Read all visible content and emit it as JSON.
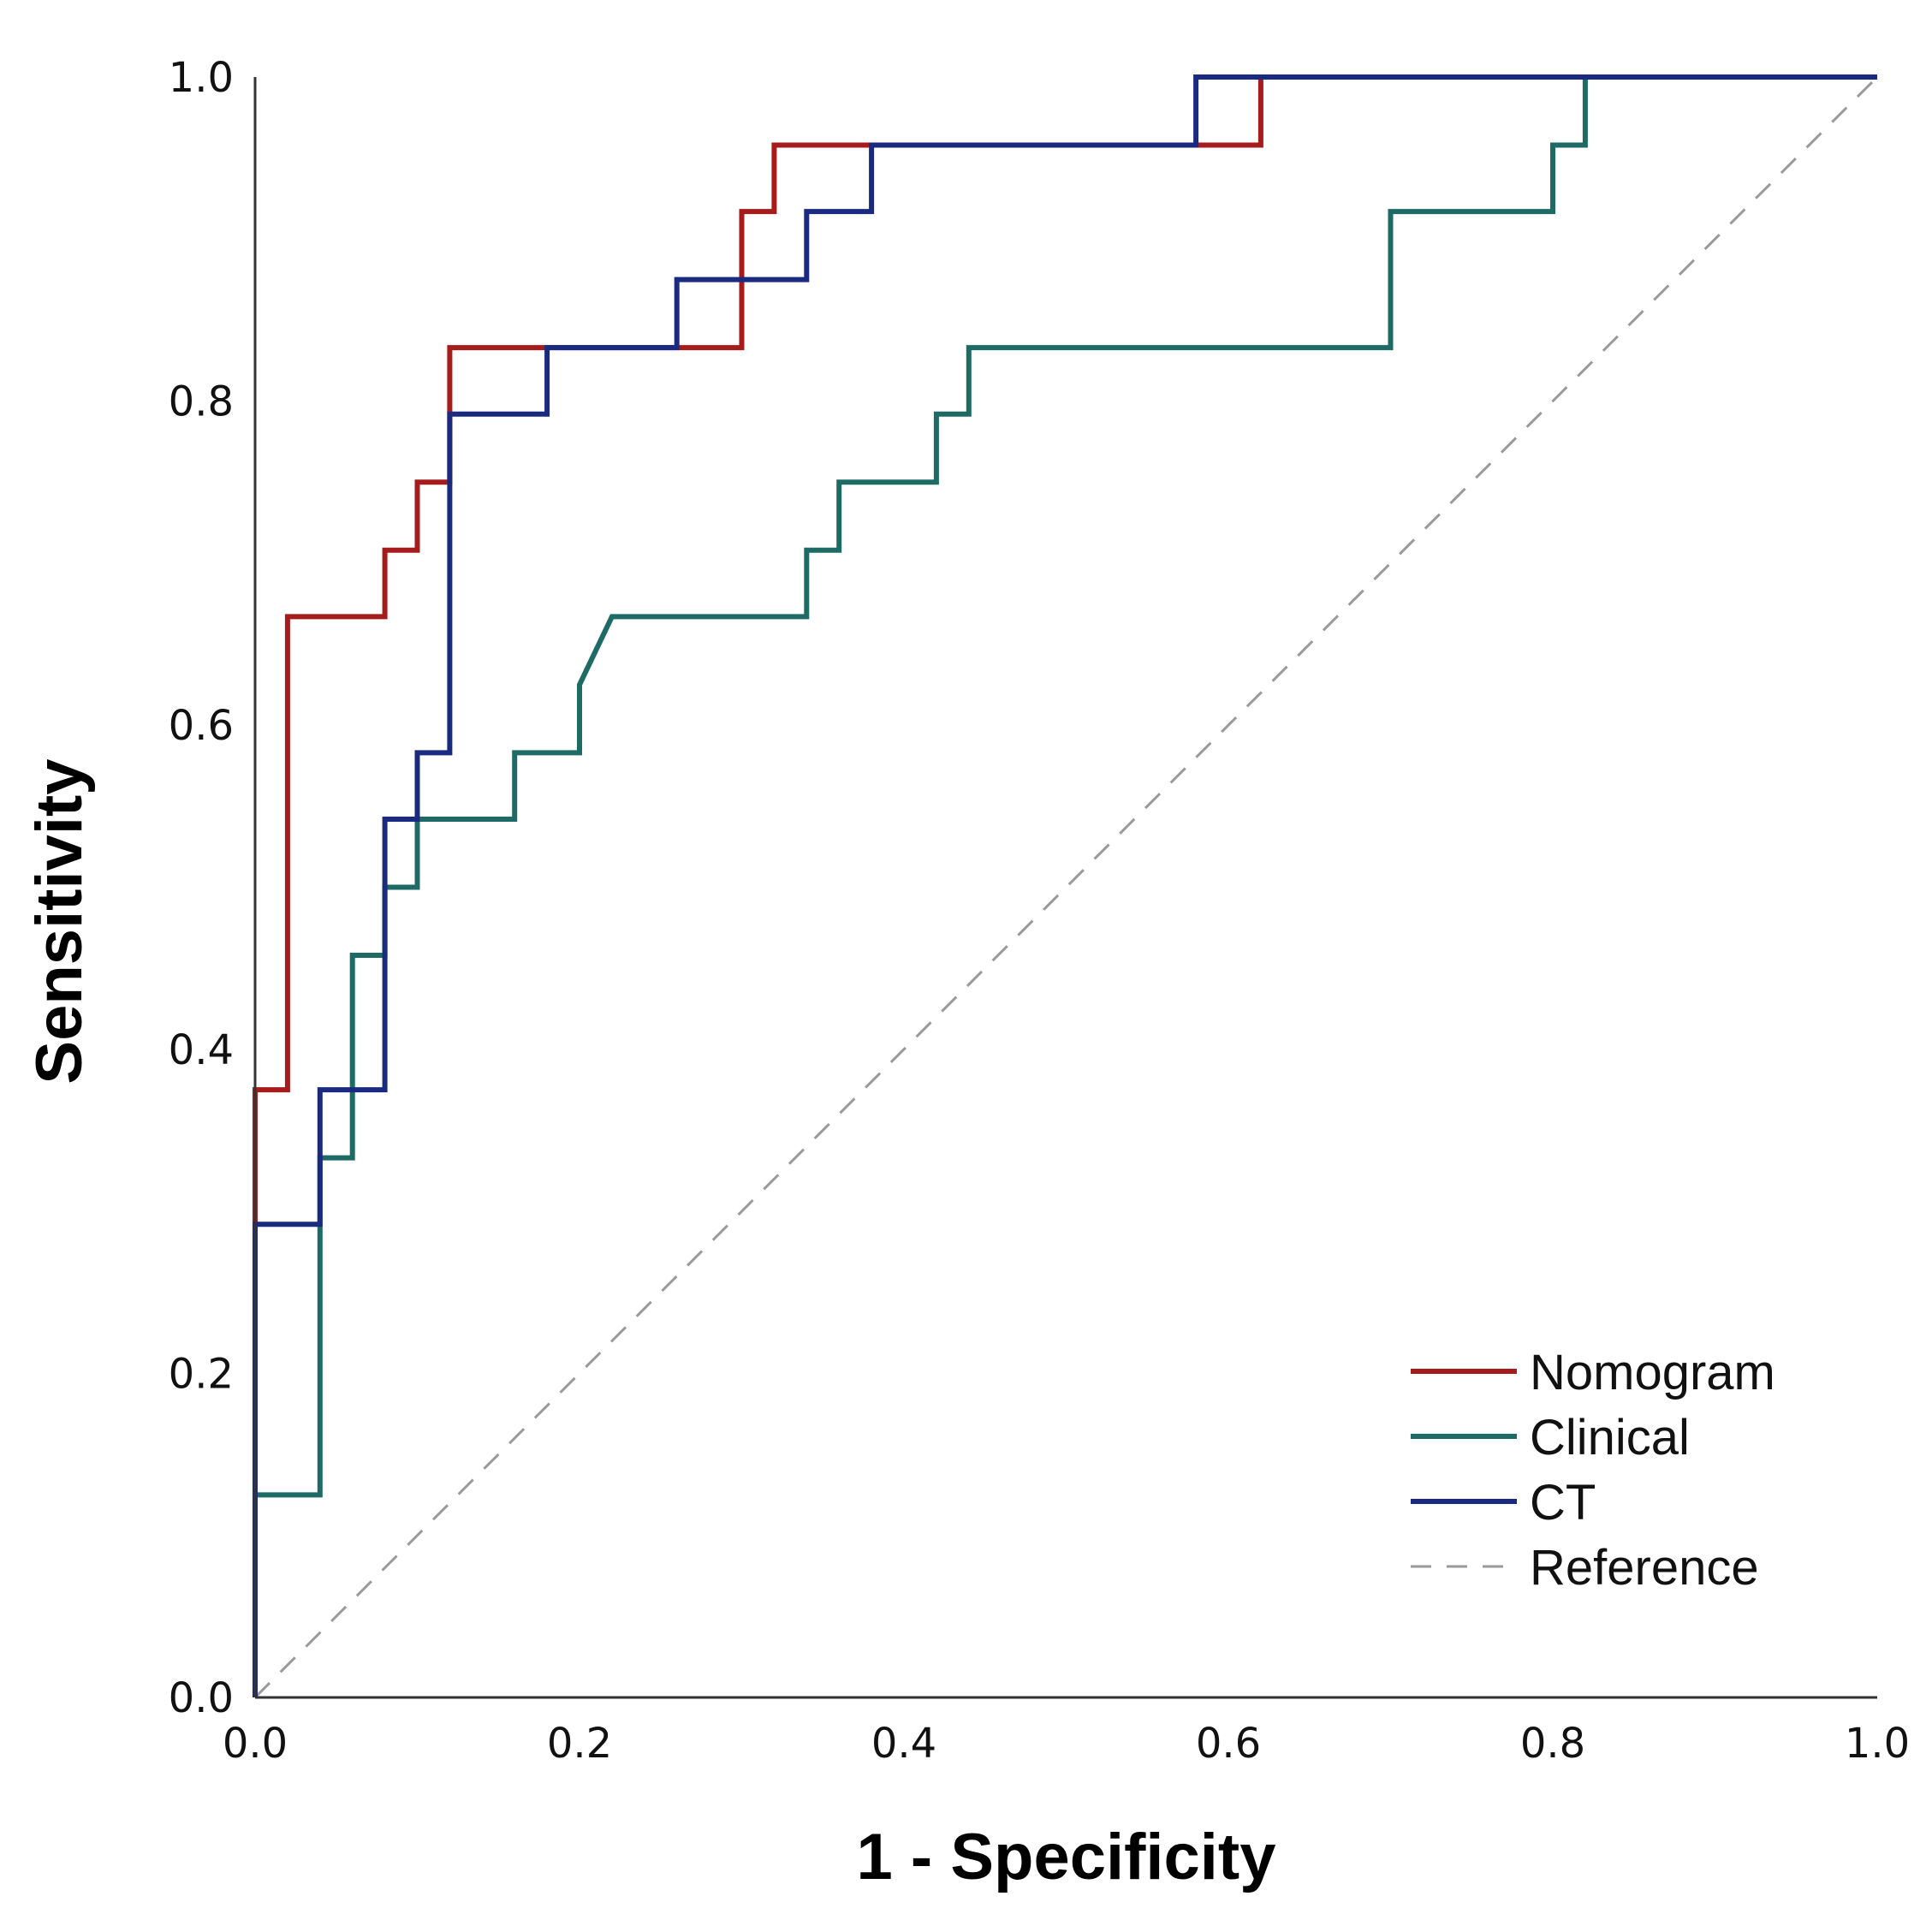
{
  "chart_data": {
    "type": "line",
    "title": "",
    "xlabel": "1 - Specificity",
    "ylabel": "Sensitivity",
    "xlim": [
      0,
      1
    ],
    "ylim": [
      0,
      1
    ],
    "grid": false,
    "legend_position": "bottom-right",
    "x_ticks": [
      "0.0",
      "0.2",
      "0.4",
      "0.6",
      "0.8",
      "1.0"
    ],
    "y_ticks": [
      "0.0",
      "0.2",
      "0.4",
      "0.6",
      "0.8",
      "1.0"
    ],
    "series": [
      {
        "name": "Nomogram",
        "color": "#a61c1c",
        "style": "solid",
        "x": [
          0,
          0,
          0,
          0.02,
          0.02,
          0.08,
          0.08,
          0.1,
          0.1,
          0.12,
          0.12,
          0.18,
          0.18,
          0.26,
          0.26,
          0.3,
          0.3,
          0.32,
          0.32,
          0.38,
          0.38,
          0.58,
          0.58,
          0.62,
          0.62,
          1.0
        ],
        "y": [
          0,
          0.29,
          0.375,
          0.375,
          0.667,
          0.667,
          0.708,
          0.708,
          0.75,
          0.75,
          0.833,
          0.833,
          0.833,
          0.833,
          0.833,
          0.833,
          0.917,
          0.917,
          0.958,
          0.958,
          0.958,
          0.958,
          0.958,
          0.958,
          1.0,
          1.0
        ]
      },
      {
        "name": "Clinical",
        "color": "#1d6b64",
        "style": "solid",
        "x": [
          0,
          0,
          0.04,
          0.04,
          0.06,
          0.06,
          0.08,
          0.08,
          0.1,
          0.1,
          0.16,
          0.16,
          0.2,
          0.2,
          0.22,
          0.34,
          0.34,
          0.36,
          0.36,
          0.42,
          0.42,
          0.44,
          0.44,
          0.7,
          0.7,
          0.8,
          0.8,
          0.82,
          0.82,
          1.0
        ],
        "y": [
          0,
          0.125,
          0.125,
          0.333,
          0.333,
          0.458,
          0.458,
          0.5,
          0.5,
          0.542,
          0.542,
          0.583,
          0.583,
          0.625,
          0.667,
          0.667,
          0.708,
          0.708,
          0.75,
          0.75,
          0.792,
          0.792,
          0.833,
          0.833,
          0.917,
          0.917,
          0.958,
          0.958,
          1.0,
          1.0
        ]
      },
      {
        "name": "CT",
        "color": "#1a2a80",
        "style": "solid",
        "x": [
          0,
          0,
          0.04,
          0.04,
          0.08,
          0.08,
          0.1,
          0.1,
          0.12,
          0.12,
          0.18,
          0.18,
          0.26,
          0.26,
          0.34,
          0.34,
          0.38,
          0.38,
          0.58,
          0.58,
          1.0
        ],
        "y": [
          0,
          0.292,
          0.292,
          0.375,
          0.375,
          0.542,
          0.542,
          0.583,
          0.583,
          0.792,
          0.792,
          0.833,
          0.833,
          0.875,
          0.875,
          0.917,
          0.917,
          0.958,
          0.958,
          1.0,
          1.0
        ]
      },
      {
        "name": "Reference",
        "color": "#9a9a9a",
        "style": "dashed",
        "x": [
          0,
          1
        ],
        "y": [
          0,
          1
        ]
      }
    ]
  }
}
